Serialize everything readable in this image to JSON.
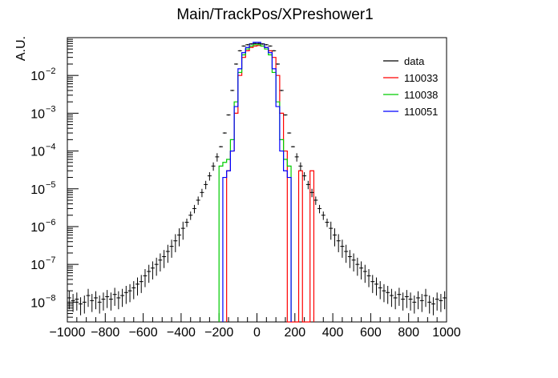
{
  "chart_data": {
    "type": "histogram",
    "title": "Main/TrackPos/XPreshower1",
    "xlabel": "",
    "ylabel": "A.U.",
    "xlim": [
      -1000,
      1000
    ],
    "ylim": [
      3e-09,
      0.1
    ],
    "yscale": "log",
    "xticks": [
      -1000,
      -800,
      -600,
      -400,
      -200,
      0,
      200,
      400,
      600,
      800,
      1000
    ],
    "xtick_labels": [
      "−1000",
      "−800",
      "−600",
      "−400",
      "−200",
      "0",
      "200",
      "400",
      "600",
      "800",
      "1000"
    ],
    "yticks": [
      1e-08,
      1e-07,
      1e-06,
      1e-05,
      0.0001,
      0.001,
      0.01
    ],
    "ytick_labels": [
      {
        "base": "10",
        "exp": "−8"
      },
      {
        "base": "10",
        "exp": "−7"
      },
      {
        "base": "10",
        "exp": "−6"
      },
      {
        "base": "10",
        "exp": "−5"
      },
      {
        "base": "10",
        "exp": "−4"
      },
      {
        "base": "10",
        "exp": "−3"
      },
      {
        "base": "10",
        "exp": "−2"
      }
    ],
    "legend": {
      "position": "top-right",
      "entries": [
        {
          "label": "data",
          "color": "#000000"
        },
        {
          "label": "110033",
          "color": "#ff0000"
        },
        {
          "label": "110038",
          "color": "#00cc00"
        },
        {
          "label": "110051",
          "color": "#0000ff"
        }
      ]
    },
    "series": [
      {
        "name": "data",
        "style": "points-with-errors",
        "color": "#000000",
        "x": [
          -990,
          -970,
          -950,
          -930,
          -910,
          -890,
          -870,
          -850,
          -830,
          -810,
          -790,
          -770,
          -750,
          -730,
          -710,
          -690,
          -670,
          -650,
          -630,
          -610,
          -590,
          -570,
          -550,
          -530,
          -510,
          -490,
          -470,
          -450,
          -430,
          -410,
          -390,
          -370,
          -350,
          -330,
          -310,
          -290,
          -270,
          -250,
          -230,
          -210,
          -190,
          -170,
          -150,
          -130,
          -110,
          -90,
          -70,
          -50,
          -30,
          -10,
          10,
          30,
          50,
          70,
          90,
          110,
          130,
          150,
          170,
          190,
          210,
          230,
          250,
          270,
          290,
          310,
          330,
          350,
          370,
          390,
          410,
          430,
          450,
          470,
          490,
          510,
          530,
          550,
          570,
          590,
          610,
          630,
          650,
          670,
          690,
          710,
          730,
          750,
          770,
          790,
          810,
          830,
          850,
          870,
          890,
          910,
          930,
          950,
          970,
          990
        ],
        "y": [
          1.3e-08,
          1.1e-08,
          1.2e-08,
          9e-09,
          1e-08,
          1.5e-08,
          1.1e-08,
          1.3e-08,
          1e-08,
          1.2e-08,
          1.4e-08,
          1.2e-08,
          1.6e-08,
          1.3e-08,
          1.5e-08,
          1.8e-08,
          2e-08,
          2.4e-08,
          3e-08,
          3.5e-08,
          5e-08,
          6.5e-08,
          8e-08,
          1e-07,
          1.3e-07,
          1.6e-07,
          2.2e-07,
          3e-07,
          4.2e-07,
          6e-07,
          9e-07,
          1.3e-06,
          2e-06,
          3e-06,
          5e-06,
          8e-06,
          1.3e-05,
          2.2e-05,
          4e-05,
          7e-05,
          0.00013,
          0.0003,
          0.0009,
          0.004,
          0.02,
          0.045,
          0.06,
          0.065,
          0.068,
          0.07,
          0.07,
          0.068,
          0.065,
          0.06,
          0.045,
          0.02,
          0.004,
          0.0009,
          0.0003,
          0.00013,
          7e-05,
          4e-05,
          2.2e-05,
          1.3e-05,
          8e-06,
          5e-06,
          3e-06,
          2e-06,
          1.3e-06,
          9e-07,
          6e-07,
          4.2e-07,
          3e-07,
          2.2e-07,
          1.6e-07,
          1.3e-07,
          1e-07,
          8e-08,
          6.5e-08,
          5e-08,
          3.5e-08,
          3e-08,
          2.4e-08,
          2e-08,
          1.8e-08,
          1.5e-08,
          1.3e-08,
          1.6e-08,
          1.2e-08,
          1.4e-08,
          1.2e-08,
          1e-08,
          1.3e-08,
          1.1e-08,
          1.5e-08,
          1e-08,
          9e-09,
          1.2e-08,
          1.1e-08,
          1.3e-08
        ]
      },
      {
        "name": "110033",
        "style": "step",
        "color": "#ff0000",
        "bin_edges": [
          -160,
          -140,
          -120,
          -100,
          -80,
          -60,
          -40,
          -20,
          0,
          20,
          40,
          60,
          80,
          100,
          120,
          140,
          160,
          220,
          240,
          280,
          300
        ],
        "y": [
          3e-05,
          0.0001,
          0.001,
          0.01,
          0.03,
          0.045,
          0.055,
          0.06,
          0.062,
          0.06,
          0.055,
          0.045,
          0.03,
          0.01,
          0.001,
          0.0001,
          0,
          3e-05,
          0,
          3e-05
        ]
      },
      {
        "name": "110038",
        "style": "step",
        "color": "#00cc00",
        "bin_edges": [
          -200,
          -180,
          -160,
          -140,
          -120,
          -100,
          -80,
          -60,
          -40,
          -20,
          0,
          20,
          40,
          60,
          80,
          100,
          120,
          140,
          160,
          180
        ],
        "y": [
          4e-05,
          5e-05,
          6e-05,
          0.0002,
          0.002,
          0.012,
          0.035,
          0.05,
          0.06,
          0.065,
          0.065,
          0.06,
          0.05,
          0.035,
          0.012,
          0.002,
          0.0002,
          6e-05,
          4e-05
        ]
      },
      {
        "name": "110051",
        "style": "step",
        "color": "#0000ff",
        "bin_edges": [
          -180,
          -160,
          -140,
          -120,
          -100,
          -80,
          -60,
          -40,
          -20,
          0,
          20,
          40,
          60,
          80,
          100,
          120,
          140,
          160,
          180
        ],
        "y": [
          2e-05,
          3e-05,
          0.0001,
          0.0015,
          0.015,
          0.04,
          0.055,
          0.068,
          0.075,
          0.075,
          0.068,
          0.055,
          0.04,
          0.015,
          0.0015,
          0.0001,
          3e-05,
          2e-05
        ]
      }
    ]
  }
}
